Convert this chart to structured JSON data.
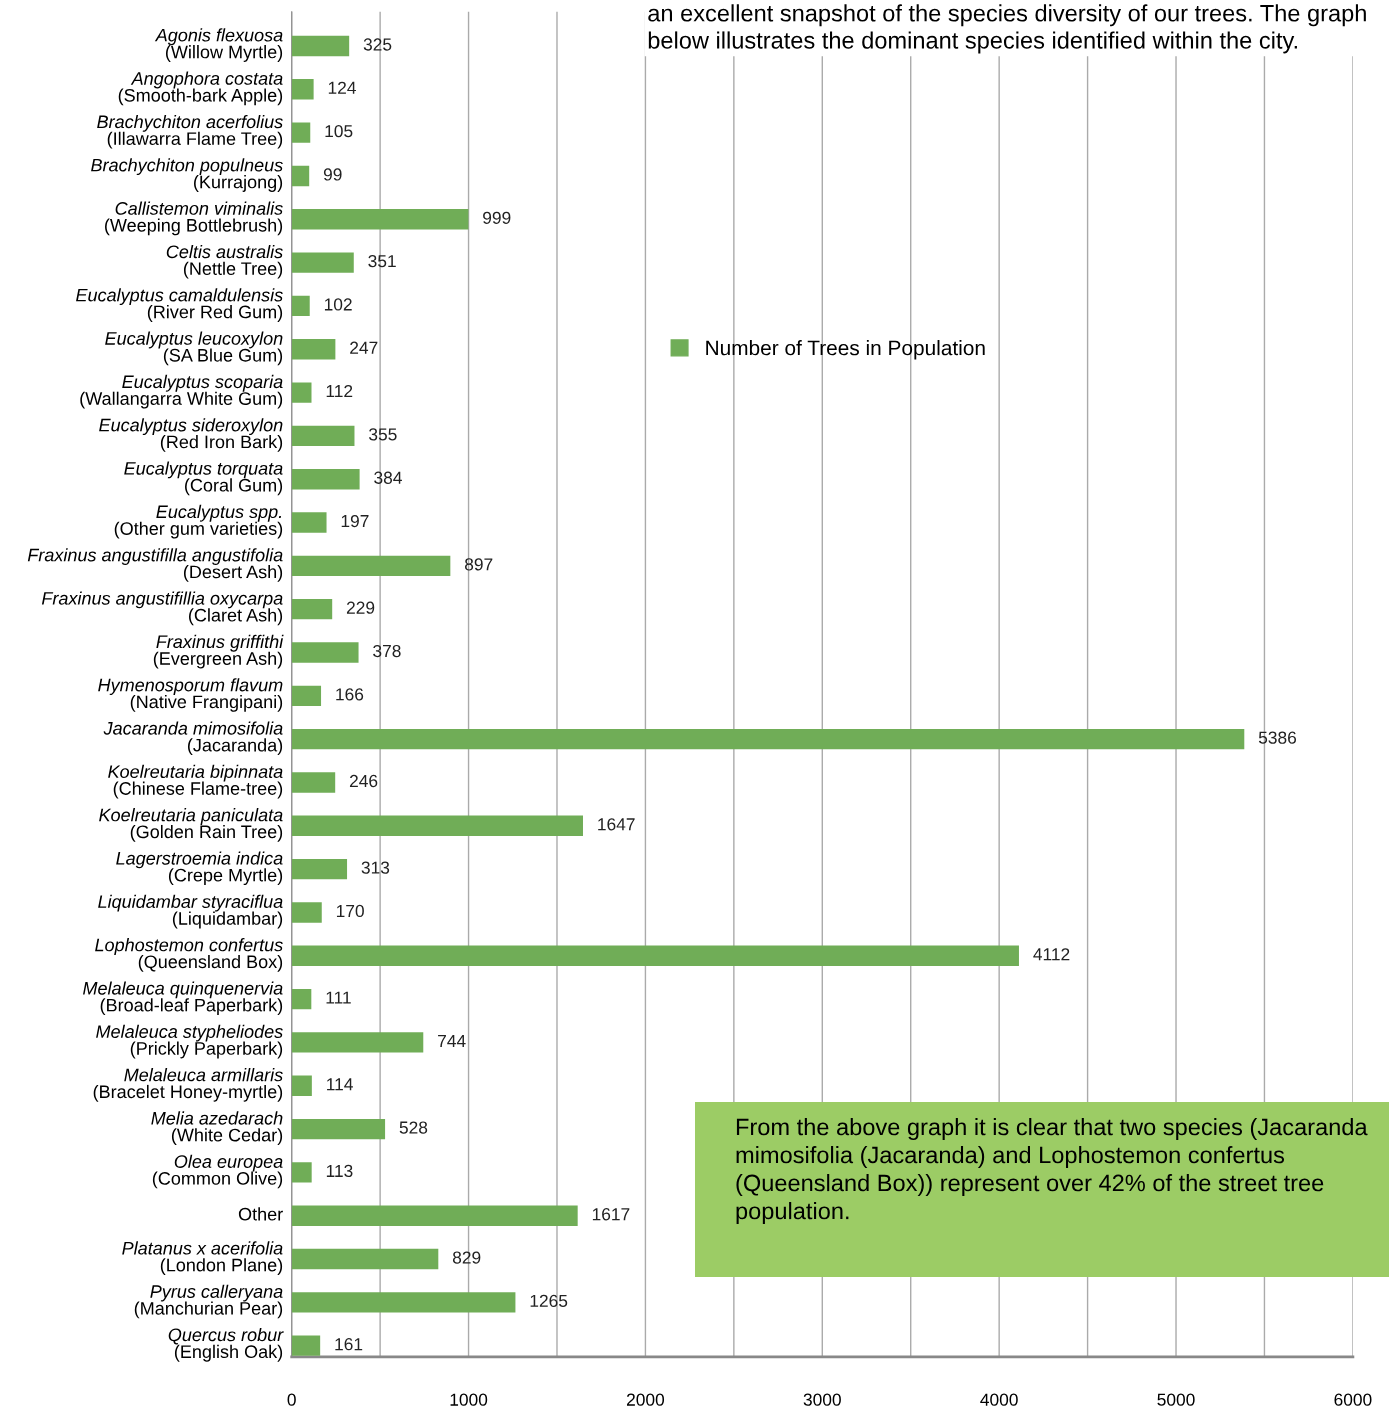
{
  "chart_data": {
    "type": "bar",
    "orientation": "horizontal",
    "categories": [
      "Agonis flexuosa\n(Willow Myrtle)",
      "Angophora costata\n(Smooth-bark Apple)",
      "Brachychiton acerfolius\n(Illawarra Flame Tree)",
      "Brachychiton populneus\n(Kurrajong)",
      "Callistemon viminalis\n(Weeping Bottlebrush)",
      "Celtis australis\n(Nettle Tree)",
      "Eucalyptus camaldulensis\n(River Red Gum)",
      "Eucalyptus leucoxylon\n(SA Blue Gum)",
      "Eucalyptus scoparia\n(Wallangarra White Gum)",
      "Eucalyptus sideroxylon\n(Red Iron Bark)",
      "Eucalyptus torquata\n(Coral Gum)",
      "Eucalyptus spp.\n(Other gum varieties)",
      "Fraxinus angustifilla angustifolia\n(Desert Ash)",
      "Fraxinus angustifillia oxycarpa\n(Claret Ash)",
      "Fraxinus griffithi\n(Evergreen Ash)",
      "Hymenosporum flavum\n(Native Frangipani)",
      "Jacaranda mimosifolia\n(Jacaranda)",
      "Koelreutaria bipinnata\n(Chinese Flame-tree)",
      "Koelreutaria paniculata\n(Golden Rain Tree)",
      "Lagerstroemia indica\n(Crepe Myrtle)",
      "Liquidambar styraciflua\n(Liquidambar)",
      "Lophostemon confertus\n(Queensland Box)",
      "Melaleuca quinquenervia\n(Broad-leaf Paperbark)",
      "Melaleuca stypheliodes\n(Prickly Paperbark)",
      "Melaleuca armillaris\n(Bracelet Honey-myrtle)",
      "Melia azedarach\n(White Cedar)",
      "Olea europea\n(Common Olive)",
      "Other",
      "Platanus x acerifolia\n(London Plane)",
      "Pyrus calleryana\n(Manchurian Pear)",
      "Quercus robur\n(English Oak)"
    ],
    "series": [
      {
        "name": "Number of Trees in Population",
        "color": "#70ad57",
        "values": [
          325,
          124,
          105,
          99,
          999,
          351,
          102,
          247,
          112,
          355,
          384,
          197,
          897,
          229,
          378,
          166,
          5386,
          246,
          1647,
          313,
          170,
          4112,
          111,
          744,
          114,
          528,
          113,
          1617,
          829,
          1265,
          161
        ]
      }
    ],
    "xlim": [
      0,
      6000
    ],
    "xticks": [
      0,
      {
        "value": 500,
        "label": null
      },
      1000,
      {
        "value": 1500,
        "label": null
      },
      2000,
      {
        "value": 2500,
        "label": null
      },
      3000,
      {
        "value": 3500,
        "label": null
      },
      4000,
      {
        "value": 4500,
        "label": null
      },
      5000,
      {
        "value": 5500,
        "label": null
      },
      6000
    ],
    "grid": "x",
    "legend": "top",
    "data_labels": true,
    "annotations": [
      "an excellent snapshot of the species diversity of our trees. The graph below illustrates the dominant species identified within the city.",
      "From the above graph it is clear that two species (Jacaranda mimosifolia (Jacaranda) and Lophostemon confertus (Queensland Box)) represent over 42% of the street tree population."
    ]
  }
}
